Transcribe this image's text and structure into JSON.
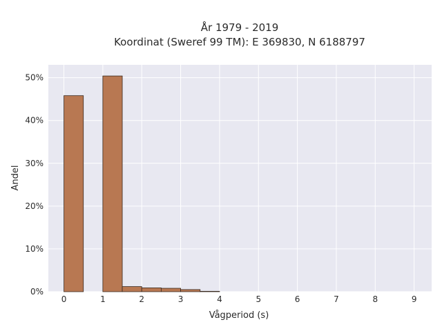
{
  "chart_data": {
    "type": "bar",
    "title_line1": "År 1979 - 2019",
    "title_line2": "Koordinat (Sweref 99 TM): E 369830, N 6188797",
    "xlabel": "Vågperiod (s)",
    "ylabel": "Andel",
    "xlim": [
      -0.4,
      9.45
    ],
    "ylim": [
      0,
      53
    ],
    "x_ticks": [
      0,
      1,
      2,
      3,
      4,
      5,
      6,
      7,
      8,
      9
    ],
    "y_ticks": [
      0,
      10,
      20,
      30,
      40,
      50
    ],
    "y_tick_labels": [
      "0%",
      "10%",
      "20%",
      "30%",
      "40%",
      "50%"
    ],
    "bin_width": 0.5,
    "bins": [
      {
        "start": 0.0,
        "value": 45.8
      },
      {
        "start": 1.0,
        "value": 50.4
      },
      {
        "start": 1.5,
        "value": 1.2
      },
      {
        "start": 2.0,
        "value": 0.9
      },
      {
        "start": 2.5,
        "value": 0.8
      },
      {
        "start": 3.0,
        "value": 0.5
      },
      {
        "start": 3.5,
        "value": 0.1
      }
    ],
    "grid": true,
    "legend": "none",
    "colors": {
      "bar_fill": "#b87852",
      "bar_stroke": "#3a2a20",
      "plot_bg": "#e8e8f1",
      "grid": "#ffffff",
      "text": "#2a2a2a"
    }
  }
}
